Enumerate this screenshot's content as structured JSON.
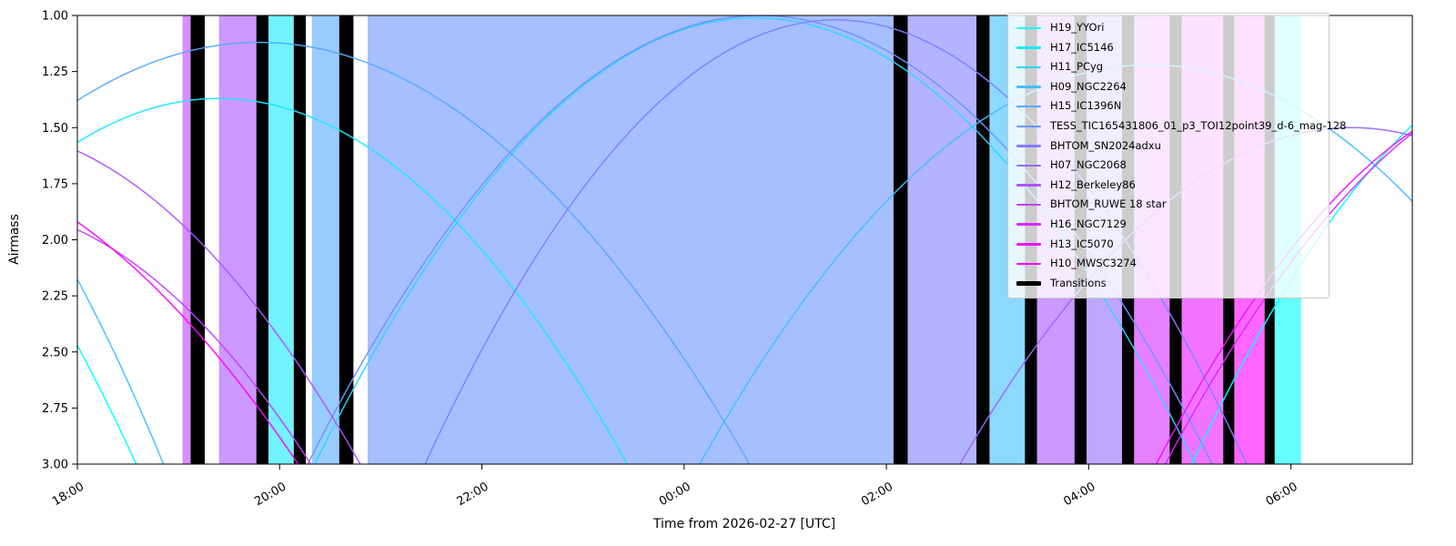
{
  "chart_data": {
    "type": "line",
    "title": "",
    "x_axis": {
      "label": "Time from 2026-02-27 [UTC]",
      "range_hours": [
        18.0,
        31.2
      ],
      "tick_hours": [
        18,
        20,
        22,
        24,
        26,
        28,
        30
      ],
      "tick_labels": [
        "18:00",
        "20:00",
        "22:00",
        "00:00",
        "02:00",
        "04:00",
        "06:00"
      ]
    },
    "y_axis": {
      "label": "Airmass",
      "range": [
        1.0,
        3.0
      ],
      "inverted": true,
      "tick_values": [
        1.0,
        1.25,
        1.5,
        1.75,
        2.0,
        2.25,
        2.5,
        2.75,
        3.0
      ],
      "tick_labels": [
        "1.00",
        "1.25",
        "1.50",
        "1.75",
        "2.00",
        "2.25",
        "2.50",
        "2.75",
        "3.00"
      ]
    },
    "grid": false,
    "legend_position": "upper right",
    "series": [
      {
        "name": "H19_YYOri",
        "color": "#00ffff",
        "transit_hour": 33.0,
        "min_airmass": 1.1,
        "curvature": 0.12
      },
      {
        "name": "H19_YYOri",
        "color": "#00ffff",
        "transit_hour": 14.5,
        "min_airmass": 1.0,
        "curvature": 0.12
      },
      {
        "name": "H17_IC5146",
        "color": "#15eaff",
        "transit_hour": 19.4,
        "min_airmass": 1.37,
        "curvature": 0.1
      },
      {
        "name": "H11_PCyg",
        "color": "#2bd5ff",
        "transit_hour": 24.7,
        "min_airmass": 1.01,
        "curvature": 0.105
      },
      {
        "name": "H09_NGC2264",
        "color": "#40bfff",
        "transit_hour": 28.6,
        "min_airmass": 1.22,
        "curvature": 0.09
      },
      {
        "name": "H09_NGC2264",
        "color": "#40bfff",
        "transit_hour": 15.2,
        "min_airmass": 1.0,
        "curvature": 0.15
      },
      {
        "name": "H15_IC1396N",
        "color": "#55aaff",
        "transit_hour": 19.8,
        "min_airmass": 1.12,
        "curvature": 0.08
      },
      {
        "name": "TESS_TIC165431806_01_p3_TOI12point39_d-6_mag-128",
        "color": "#6a95ff",
        "transit_hour": 24.75,
        "min_airmass": 1.0,
        "curvature": 0.1
      },
      {
        "name": "BHTOM_SN2024adxu",
        "color": "#8080ff",
        "transit_hour": 25.5,
        "min_airmass": 1.02,
        "curvature": 0.12
      },
      {
        "name": "H07_NGC2068",
        "color": "#956aff",
        "transit_hour": 30.6,
        "min_airmass": 1.5,
        "curvature": 0.1
      },
      {
        "name": "H12_Berkeley86",
        "color": "#aa55ff",
        "transit_hour": 17.0,
        "min_airmass": 1.5,
        "curvature": 0.104
      },
      {
        "name": "BHTOM_RUWE 18 star",
        "color": "#bf40ff",
        "transit_hour": 17.0,
        "min_airmass": 1.85,
        "curvature": 0.105
      },
      {
        "name": "H16_NGC7129",
        "color": "#d52bff",
        "transit_hour": 33.0,
        "min_airmass": 1.2,
        "curvature": 0.1
      },
      {
        "name": "H13_IC5070",
        "color": "#ea15ff",
        "transit_hour": 32.6,
        "min_airmass": 1.3,
        "curvature": 0.11
      },
      {
        "name": "H10_MWSC3274",
        "color": "#ff00ff",
        "transit_hour": 16.0,
        "min_airmass": 1.6,
        "curvature": 0.08
      }
    ],
    "schedule_bands": [
      {
        "start": 19.04,
        "end": 19.12,
        "target": "BHTOM_RUWE 18 star",
        "color": "#bf40ff"
      },
      {
        "start": 19.12,
        "end": 19.26,
        "target": "Transitions",
        "color": "#000000"
      },
      {
        "start": 19.4,
        "end": 19.77,
        "target": "H12_Berkeley86",
        "color": "#aa55ff"
      },
      {
        "start": 19.77,
        "end": 19.89,
        "target": "Transitions",
        "color": "#000000"
      },
      {
        "start": 19.89,
        "end": 20.14,
        "target": "H17_IC5146",
        "color": "#15eaff"
      },
      {
        "start": 20.14,
        "end": 20.26,
        "target": "Transitions",
        "color": "#000000"
      },
      {
        "start": 20.32,
        "end": 20.59,
        "target": "H15_IC1396N",
        "color": "#55aaff"
      },
      {
        "start": 20.59,
        "end": 20.73,
        "target": "Transitions",
        "color": "#000000"
      },
      {
        "start": 20.87,
        "end": 26.07,
        "target": "TESS_TIC165431806_01_p3_TOI12point39_d-6_mag-128",
        "color": "#6a95ff"
      },
      {
        "start": 26.07,
        "end": 26.21,
        "target": "Transitions",
        "color": "#000000"
      },
      {
        "start": 26.21,
        "end": 26.89,
        "target": "BHTOM_SN2024adxu",
        "color": "#8080ff"
      },
      {
        "start": 26.89,
        "end": 27.02,
        "target": "Transitions",
        "color": "#000000"
      },
      {
        "start": 27.02,
        "end": 27.37,
        "target": "H09_NGC2264",
        "color": "#40bfff"
      },
      {
        "start": 27.37,
        "end": 27.49,
        "target": "Transitions",
        "color": "#000000"
      },
      {
        "start": 27.49,
        "end": 27.86,
        "target": "H12_Berkeley86",
        "color": "#aa55ff"
      },
      {
        "start": 27.86,
        "end": 27.98,
        "target": "Transitions",
        "color": "#000000"
      },
      {
        "start": 27.98,
        "end": 28.33,
        "target": "H07_NGC2068",
        "color": "#956aff"
      },
      {
        "start": 28.33,
        "end": 28.45,
        "target": "Transitions",
        "color": "#000000"
      },
      {
        "start": 28.45,
        "end": 28.8,
        "target": "H16_NGC7129",
        "color": "#d52bff"
      },
      {
        "start": 28.8,
        "end": 28.92,
        "target": "Transitions",
        "color": "#000000"
      },
      {
        "start": 28.92,
        "end": 29.33,
        "target": "H13_IC5070",
        "color": "#ea15ff"
      },
      {
        "start": 29.33,
        "end": 29.44,
        "target": "Transitions",
        "color": "#000000"
      },
      {
        "start": 29.44,
        "end": 29.74,
        "target": "H10_MWSC3274",
        "color": "#ff00ff"
      },
      {
        "start": 29.74,
        "end": 29.84,
        "target": "Transitions",
        "color": "#000000"
      },
      {
        "start": 29.84,
        "end": 30.1,
        "target": "H19_YYOri",
        "color": "#00ffff"
      }
    ],
    "band_fill_opacity": 0.6
  },
  "legend": {
    "items": [
      {
        "label": "H19_YYOri",
        "color": "#00ffff",
        "thickness": 2.5
      },
      {
        "label": "H17_IC5146",
        "color": "#15eaff",
        "thickness": 2.5
      },
      {
        "label": "H11_PCyg",
        "color": "#2bd5ff",
        "thickness": 2.5
      },
      {
        "label": "H09_NGC2264",
        "color": "#40bfff",
        "thickness": 2.5
      },
      {
        "label": "H15_IC1396N",
        "color": "#55aaff",
        "thickness": 2.5
      },
      {
        "label": "TESS_TIC165431806_01_p3_TOI12point39_d-6_mag-128",
        "color": "#6a95ff",
        "thickness": 2.5
      },
      {
        "label": "BHTOM_SN2024adxu",
        "color": "#8080ff",
        "thickness": 2.5
      },
      {
        "label": "H07_NGC2068",
        "color": "#956aff",
        "thickness": 2.5
      },
      {
        "label": "H12_Berkeley86",
        "color": "#aa55ff",
        "thickness": 2.5
      },
      {
        "label": "BHTOM_RUWE 18 star",
        "color": "#bf40ff",
        "thickness": 2.5
      },
      {
        "label": "H16_NGC7129",
        "color": "#d52bff",
        "thickness": 2.5
      },
      {
        "label": "H13_IC5070",
        "color": "#ea15ff",
        "thickness": 2.5
      },
      {
        "label": "H10_MWSC3274",
        "color": "#ff00ff",
        "thickness": 2.5
      },
      {
        "label": "Transitions",
        "color": "#000000",
        "thickness": 5
      }
    ]
  }
}
